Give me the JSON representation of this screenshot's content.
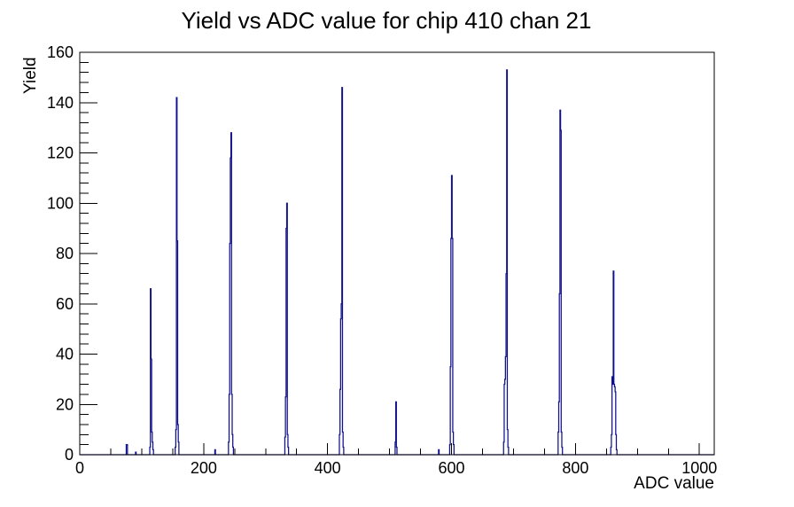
{
  "chart_data": {
    "type": "histogram",
    "title": "Yield vs ADC value for chip 410 chan 21",
    "xlabel": "ADC value",
    "ylabel": "Yield",
    "xlim": [
      0,
      1024
    ],
    "ylim": [
      0,
      160
    ],
    "grid": false,
    "legend": "none",
    "line_color": "#10108c",
    "frame_color": "#000000",
    "x_tick_values": [
      0,
      200,
      400,
      600,
      800,
      1000
    ],
    "x_tick_labels": [
      "0",
      "200",
      "400",
      "600",
      "800",
      "1000"
    ],
    "x_minor_tick_step": 50,
    "y_tick_values": [
      0,
      20,
      40,
      60,
      80,
      100,
      120,
      140,
      160
    ],
    "y_tick_labels": [
      "0",
      "20",
      "40",
      "60",
      "80",
      "100",
      "120",
      "140",
      "160"
    ],
    "y_minor_tick_step": 4,
    "bin_width": 1,
    "bins": [
      [
        75,
        4
      ],
      [
        76,
        4
      ],
      [
        90,
        1
      ],
      [
        113,
        3
      ],
      [
        114,
        66
      ],
      [
        115,
        38
      ],
      [
        116,
        9
      ],
      [
        117,
        5
      ],
      [
        118,
        2
      ],
      [
        154,
        3
      ],
      [
        155,
        10
      ],
      [
        156,
        142
      ],
      [
        157,
        85
      ],
      [
        158,
        12
      ],
      [
        159,
        5
      ],
      [
        218,
        2
      ],
      [
        240,
        5
      ],
      [
        241,
        24
      ],
      [
        242,
        84
      ],
      [
        243,
        118
      ],
      [
        244,
        128
      ],
      [
        245,
        24
      ],
      [
        246,
        8
      ],
      [
        247,
        3
      ],
      [
        331,
        7
      ],
      [
        332,
        23
      ],
      [
        333,
        90
      ],
      [
        334,
        100
      ],
      [
        335,
        8
      ],
      [
        336,
        3
      ],
      [
        419,
        8
      ],
      [
        420,
        26
      ],
      [
        421,
        54
      ],
      [
        422,
        60
      ],
      [
        423,
        146
      ],
      [
        424,
        9
      ],
      [
        425,
        3
      ],
      [
        509,
        5
      ],
      [
        510,
        21
      ],
      [
        511,
        3
      ],
      [
        579,
        2
      ],
      [
        597,
        4
      ],
      [
        598,
        35
      ],
      [
        599,
        86
      ],
      [
        600,
        111
      ],
      [
        601,
        86
      ],
      [
        602,
        9
      ],
      [
        603,
        4
      ],
      [
        684,
        5
      ],
      [
        685,
        28
      ],
      [
        686,
        30
      ],
      [
        687,
        39
      ],
      [
        688,
        72
      ],
      [
        689,
        153
      ],
      [
        690,
        10
      ],
      [
        691,
        3
      ],
      [
        772,
        9
      ],
      [
        773,
        21
      ],
      [
        774,
        64
      ],
      [
        775,
        137
      ],
      [
        776,
        129
      ],
      [
        777,
        9
      ],
      [
        778,
        3
      ],
      [
        857,
        3
      ],
      [
        858,
        8
      ],
      [
        859,
        31
      ],
      [
        860,
        28
      ],
      [
        861,
        73
      ],
      [
        862,
        28
      ],
      [
        863,
        27
      ],
      [
        864,
        25
      ],
      [
        865,
        8
      ],
      [
        866,
        2
      ]
    ]
  }
}
